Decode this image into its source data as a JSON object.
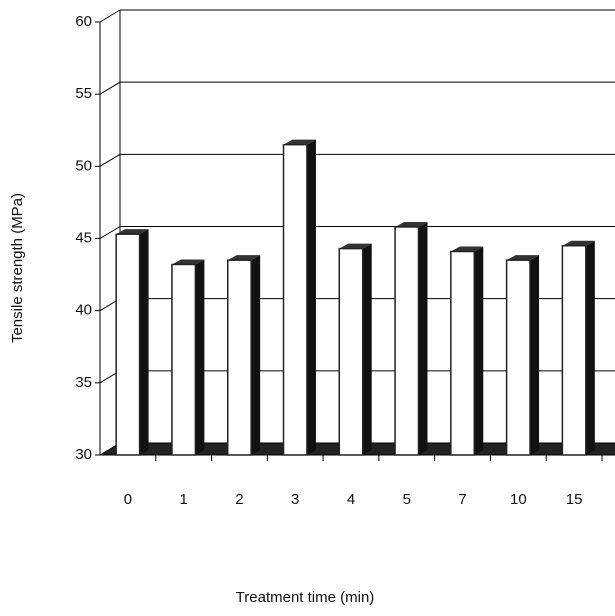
{
  "chart_data": {
    "type": "bar3d",
    "x_label": "Treatment time (min)",
    "y_label": "Tensile strength (MPa)",
    "categories": [
      "0",
      "1",
      "2",
      "3",
      "4",
      "5",
      "7",
      "10",
      "15"
    ],
    "values": [
      45.3,
      43.2,
      43.5,
      51.5,
      44.3,
      45.8,
      44.1,
      43.5,
      44.5
    ],
    "color": "#ffffff",
    "ylim": [
      30,
      60
    ],
    "yticks": [
      30,
      35,
      40,
      45,
      50,
      55,
      60
    ],
    "grid": true
  }
}
